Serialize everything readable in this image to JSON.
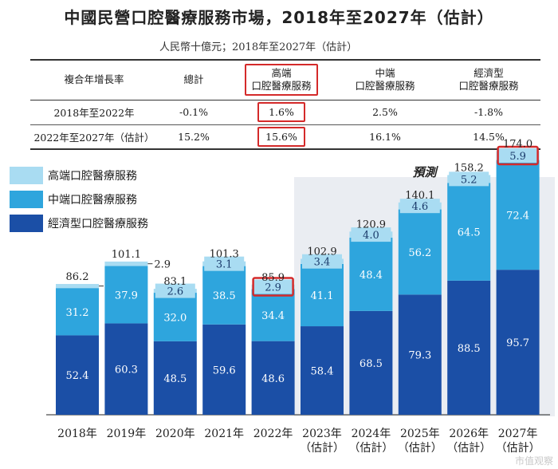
{
  "title": "中國民營口腔醫療服務市場，2018年至2027年（估計）",
  "subtitle": "人民幣十億元；2018年至2027年（估計）",
  "table": {
    "headers": [
      "複合年增長率",
      "總計",
      "高端\n口腔醫療服務",
      "中端\n口腔醫療服務",
      "經濟型\n口腔醫療服務"
    ],
    "rows": [
      [
        "2018年至2022年",
        "-0.1%",
        "1.6%",
        "2.5%",
        "-1.8%"
      ],
      [
        "2022年至2027年（估計）",
        "15.2%",
        "15.6%",
        "16.1%",
        "14.5%"
      ]
    ]
  },
  "colors": {
    "high": "#a9dcf2",
    "mid": "#2ea5dd",
    "econ": "#1b4fa6",
    "forecast_bg": "#eaedf2",
    "highlight": "#d42a2a"
  },
  "chart_data": {
    "type": "bar",
    "stacked": true,
    "categories": [
      "2018年",
      "2019年",
      "2020年",
      "2021年",
      "2022年",
      "2023年\n（估計）",
      "2024年\n（估計）",
      "2025年\n（估計）",
      "2026年\n（估計）",
      "2027年\n（估計）"
    ],
    "series": [
      {
        "name": "經濟型口腔醫療服務",
        "values": [
          52.4,
          60.3,
          48.5,
          59.6,
          48.6,
          58.4,
          68.5,
          79.3,
          88.5,
          95.7
        ]
      },
      {
        "name": "中端口腔醫療服務",
        "values": [
          31.2,
          37.9,
          32.0,
          38.5,
          34.4,
          41.1,
          48.4,
          56.2,
          64.5,
          72.4
        ]
      },
      {
        "name": "高端口腔醫療服務",
        "values": [
          2.7,
          2.9,
          2.6,
          3.1,
          2.9,
          3.4,
          4.0,
          4.6,
          5.2,
          5.9
        ]
      }
    ],
    "totals": [
      86.2,
      101.1,
      83.1,
      101.3,
      85.9,
      102.9,
      120.9,
      140.1,
      158.2,
      174.0
    ],
    "total_labels": [
      "86.2",
      "101.1",
      "83.1",
      "101.3",
      "85.9",
      "102.9",
      "120.9",
      "140.1",
      "158.2",
      "174.0"
    ],
    "forecast_label": "預測",
    "forecast_start_index": 5,
    "highlighted": [
      [
        4,
        2
      ],
      [
        9,
        2
      ]
    ],
    "legend_position": "top-left",
    "ylim": [
      0,
      180
    ]
  },
  "watermark": "市值观察"
}
